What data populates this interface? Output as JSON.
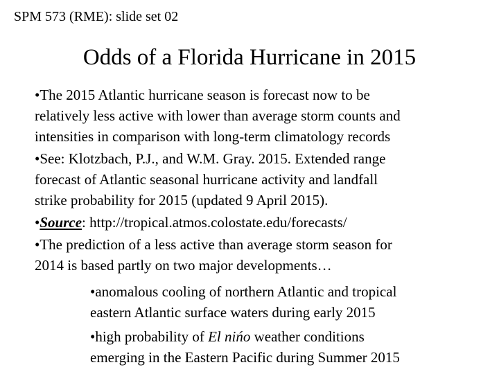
{
  "page": {
    "background_color": "#ffffff",
    "text_color": "#000000"
  },
  "header": {
    "label": "SPM 573 (RME): slide set 02"
  },
  "title": {
    "text": "Odds of a Florida Hurricane in 2015"
  },
  "bullets": {
    "b1": "•The 2015 Atlantic hurricane season is forecast now to be\nrelatively less active with lower than average storm counts and\nintensities in comparison with long-term climatology records",
    "b2": "•See: Klotzbach, P.J., and W.M. Gray.  2015. Extended range\nforecast of Atlantic seasonal hurricane activity and landfall\nstrike probability for 2015 (updated 9 April 2015).",
    "b3_bullet": "•",
    "b3_label": "Source",
    "b3_rest": ": http://tropical.atmos.colostate.edu/forecasts/",
    "b4": "•The prediction of a less active than average storm season for\n2014 is based partly on two major developments…",
    "sub1": "•anomalous cooling of northern Atlantic and tropical\neastern Atlantic surface waters during early 2015",
    "sub2_pre": "•high probability of ",
    "sub2_italic": "El nińo",
    "sub2_post": " weather conditions\nemerging in the Eastern Pacific during Summer 2015"
  }
}
